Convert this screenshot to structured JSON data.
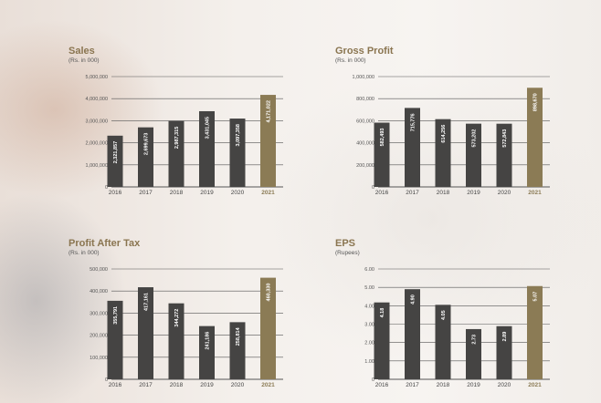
{
  "colors": {
    "bar_dark": "#454443",
    "bar_highlight": "#8b7b55",
    "title": "#8a7550",
    "grid": "#555555"
  },
  "chart_data": [
    {
      "type": "bar",
      "title": "Sales",
      "subtitle": "(Rs. in 000)",
      "categories": [
        "2016",
        "2017",
        "2018",
        "2019",
        "2020",
        "2021"
      ],
      "values": [
        2321857,
        2699673,
        2987315,
        3431045,
        3097358,
        4171022
      ],
      "labels": [
        "2,321,857",
        "2,699,673",
        "2,987,315",
        "3,431,045",
        "3,097,358",
        "4,171,022"
      ],
      "ticks": [
        "0",
        "1,000,000",
        "2,000,000",
        "3,000,000",
        "4,000,000",
        "5,000,000"
      ],
      "ylim": [
        0,
        5000000
      ],
      "highlight_index": 5
    },
    {
      "type": "bar",
      "title": "Gross Profit",
      "subtitle": "(Rs. in 000)",
      "categories": [
        "2016",
        "2017",
        "2018",
        "2019",
        "2020",
        "2021"
      ],
      "values": [
        582493,
        715776,
        614256,
        573202,
        572843,
        898670
      ],
      "labels": [
        "582,493",
        "715,776",
        "614,256",
        "573,202",
        "572,843",
        "898,670"
      ],
      "ticks": [
        "0",
        "200,000",
        "400,000",
        "600,000",
        "800,000",
        "1,000,000"
      ],
      "ylim": [
        0,
        1000000
      ],
      "highlight_index": 5
    },
    {
      "type": "bar",
      "title": "Profit After Tax",
      "subtitle": "(Rs. in 000)",
      "categories": [
        "2016",
        "2017",
        "2018",
        "2019",
        "2020",
        "2021"
      ],
      "values": [
        355791,
        417161,
        344272,
        241186,
        258814,
        460330
      ],
      "labels": [
        "355,791",
        "417,161",
        "344,272",
        "241,186",
        "258,814",
        "460,330"
      ],
      "ticks": [
        "0",
        "100,000",
        "200,000",
        "300,000",
        "400,000",
        "500,000"
      ],
      "ylim": [
        0,
        500000
      ],
      "highlight_index": 5
    },
    {
      "type": "bar",
      "title": "EPS",
      "subtitle": "(Rupees)",
      "categories": [
        "2016",
        "2017",
        "2018",
        "2019",
        "2020",
        "2021"
      ],
      "values": [
        4.18,
        4.9,
        4.05,
        2.73,
        2.89,
        5.07
      ],
      "labels": [
        "4.18",
        "4.90",
        "4.05",
        "2.73",
        "2.89",
        "5.07"
      ],
      "ticks": [
        "0",
        "1.00",
        "2.00",
        "3.00",
        "4.00",
        "5.00",
        "6.00"
      ],
      "ylim": [
        0,
        6
      ],
      "highlight_index": 5
    }
  ]
}
